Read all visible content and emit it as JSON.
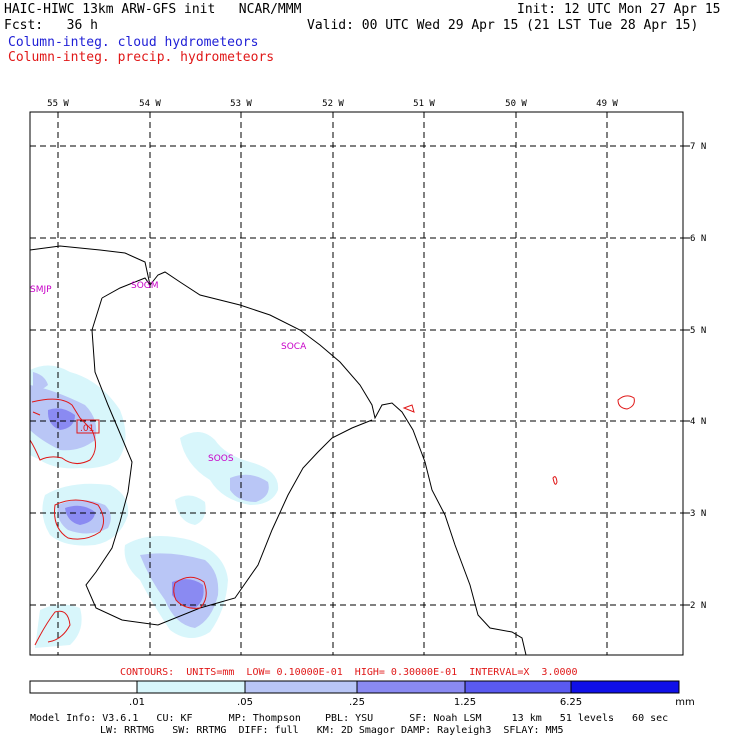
{
  "header": {
    "title": "HAIC-HIWC 13km ARW-GFS init   NCAR/MMM",
    "fcst": "Fcst:   36 h",
    "init": "Init: 12 UTC Mon 27 Apr 15",
    "valid": "Valid: 00 UTC Wed 29 Apr 15 (21 LST Tue 28 Apr 15)",
    "legend_cloud": "Column-integ. cloud hydrometeors",
    "legend_precip": "Column-integ. precip. hydrometeors",
    "legend_cloud_color": "#1f1fd6",
    "legend_precip_color": "#e01818"
  },
  "map": {
    "lon_labels": [
      "55 W",
      "54 W",
      "53 W",
      "52 W",
      "51 W",
      "50 W",
      "49 W"
    ],
    "lat_labels": [
      "7 N",
      "6 N",
      "5 N",
      "4 N",
      "3 N",
      "2 N"
    ],
    "stations": [
      "SMJP",
      "SOGM",
      "SOCA",
      "SOOS"
    ],
    "contour_label": ".01"
  },
  "contours_info": "CONTOURS:  UNITS=mm  LOW= 0.10000E-01  HIGH= 0.30000E-01  INTERVAL=X  3.0000",
  "colorbar": {
    "labels": [
      ".01",
      ".05",
      ".25",
      "1.25",
      "6.25"
    ],
    "unit": "mm",
    "colors": [
      "#ffffff",
      "#d8f6fb",
      "#b9c6f6",
      "#8a8af2",
      "#5a5af0",
      "#1010e8"
    ]
  },
  "model_info": {
    "line1": "Model Info: V3.6.1   CU: KF      MP: Thompson    PBL: YSU      SF: Noah LSM     13 km   51 levels   60 sec",
    "line2": "LW: RRTMG   SW: RRTMG  DIFF: full   KM: 2D Smagor DAMP: Rayleigh3  SFLAY: MM5"
  }
}
